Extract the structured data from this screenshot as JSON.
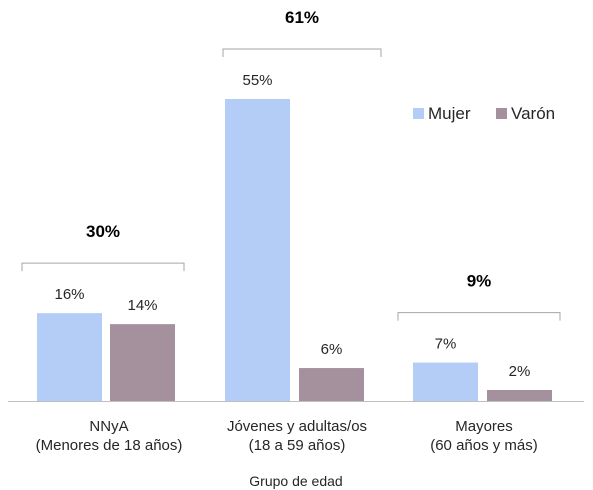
{
  "chart_data": {
    "type": "bar",
    "categories": [
      [
        "NNyA",
        "(Menores de 18 años)"
      ],
      [
        "Jóvenes y adultas/os",
        "(18 a 59 años)"
      ],
      [
        "Mayores",
        "(60 años y más)"
      ]
    ],
    "series": [
      {
        "name": "Mujer",
        "values": [
          16,
          55,
          7
        ],
        "labels": [
          "16%",
          "55%",
          "7%"
        ],
        "color": "#B4CDF7"
      },
      {
        "name": "Varón",
        "values": [
          14,
          6,
          2
        ],
        "labels": [
          "14%",
          "6%",
          "2%"
        ],
        "color": "#A4919D"
      }
    ],
    "group_totals": [
      "30%",
      "61%",
      "9%"
    ],
    "xlabel": "Grupo de edad",
    "ylabel": "",
    "ylim": [
      0,
      55
    ],
    "grid": false,
    "legend_position": "top-right"
  }
}
